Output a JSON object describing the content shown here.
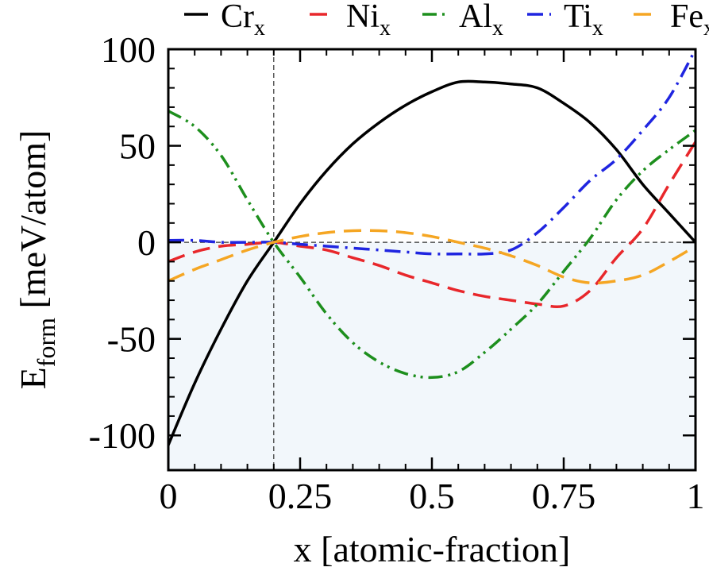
{
  "chart_data": {
    "type": "line",
    "xlabel": "x [atomic-fraction]",
    "ylabel": {
      "main": "E",
      "sub": "form",
      "rest": " [meV/atom]"
    },
    "xlim": [
      0,
      1
    ],
    "ylim": [
      -118,
      100
    ],
    "x_ticks": [
      {
        "value": 0,
        "label": "0"
      },
      {
        "value": 0.25,
        "label": "0.25"
      },
      {
        "value": 0.5,
        "label": "0.5"
      },
      {
        "value": 0.75,
        "label": "0.75"
      },
      {
        "value": 1,
        "label": "1"
      }
    ],
    "y_ticks": [
      {
        "value": 100,
        "label": "100"
      },
      {
        "value": 50,
        "label": "50"
      },
      {
        "value": 0,
        "label": "0"
      },
      {
        "value": -50,
        "label": "-50"
      },
      {
        "value": -100,
        "label": "-100"
      }
    ],
    "shaded_region": {
      "below_y": 0,
      "color": "#f2f7fb"
    },
    "reference_lines": [
      {
        "orientation": "horizontal",
        "value": 0,
        "style": "dashed"
      },
      {
        "orientation": "vertical",
        "value": 0.2,
        "style": "dashed"
      }
    ],
    "series": [
      {
        "name": "Cr",
        "sub": "x",
        "color": "#000000",
        "dash": "solid",
        "x": [
          0,
          0.05,
          0.1,
          0.15,
          0.2,
          0.25,
          0.3,
          0.35,
          0.4,
          0.45,
          0.5,
          0.55,
          0.6,
          0.65,
          0.7,
          0.75,
          0.8,
          0.85,
          0.9,
          0.95,
          1
        ],
        "y": [
          -105,
          -73,
          -45,
          -20,
          0,
          20,
          37,
          51,
          62,
          71,
          78,
          83,
          83,
          82,
          80,
          72,
          62,
          48,
          30,
          15,
          0
        ]
      },
      {
        "name": "Ni",
        "sub": "x",
        "color": "#e8272b",
        "dash": "dashed",
        "x": [
          0,
          0.05,
          0.1,
          0.15,
          0.2,
          0.25,
          0.3,
          0.35,
          0.4,
          0.45,
          0.5,
          0.55,
          0.6,
          0.65,
          0.7,
          0.75,
          0.8,
          0.85,
          0.9,
          0.95,
          1
        ],
        "y": [
          -10,
          -5,
          -2,
          -1,
          0,
          -2,
          -4,
          -8,
          -12,
          -17,
          -21,
          -25,
          -28,
          -30,
          -32,
          -33,
          -25,
          -8,
          7,
          30,
          52
        ]
      },
      {
        "name": "Al",
        "sub": "x",
        "color": "#1d8f1d",
        "dash": "dashdotdot",
        "x": [
          0,
          0.05,
          0.1,
          0.15,
          0.2,
          0.25,
          0.3,
          0.35,
          0.4,
          0.45,
          0.5,
          0.55,
          0.6,
          0.65,
          0.7,
          0.75,
          0.8,
          0.85,
          0.9,
          0.95,
          1
        ],
        "y": [
          68,
          60,
          45,
          22,
          0,
          -18,
          -37,
          -52,
          -62,
          -68,
          -70,
          -67,
          -57,
          -45,
          -32,
          -15,
          2,
          22,
          37,
          48,
          58
        ]
      },
      {
        "name": "Ti",
        "sub": "x",
        "color": "#1f25e0",
        "dash": "dashdot",
        "x": [
          0,
          0.05,
          0.1,
          0.15,
          0.2,
          0.25,
          0.3,
          0.35,
          0.4,
          0.45,
          0.5,
          0.55,
          0.6,
          0.65,
          0.7,
          0.75,
          0.8,
          0.85,
          0.9,
          0.95,
          1
        ],
        "y": [
          1,
          1,
          0,
          0,
          0,
          -1,
          -2,
          -3,
          -4,
          -5,
          -6,
          -6,
          -6,
          -4,
          5,
          18,
          32,
          43,
          58,
          75,
          100
        ]
      },
      {
        "name": "Fe",
        "sub": "x",
        "color": "#f5a623",
        "dash": "dashed",
        "x": [
          0,
          0.05,
          0.1,
          0.15,
          0.2,
          0.25,
          0.3,
          0.35,
          0.4,
          0.45,
          0.5,
          0.55,
          0.6,
          0.65,
          0.7,
          0.75,
          0.8,
          0.85,
          0.9,
          0.95,
          1
        ],
        "y": [
          -20,
          -14,
          -9,
          -4,
          0,
          3,
          5,
          6,
          6,
          5,
          3,
          0,
          -3,
          -7,
          -12,
          -18,
          -21,
          -20,
          -17,
          -10,
          -2
        ]
      }
    ]
  }
}
